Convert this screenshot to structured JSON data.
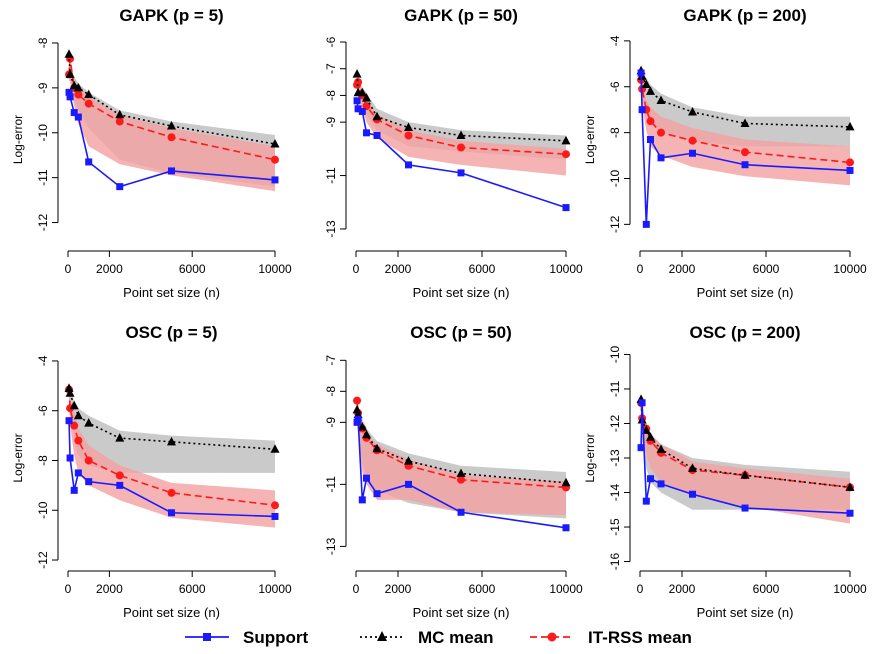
{
  "legend": {
    "items": [
      {
        "label": "Support",
        "color": "#1a1aff",
        "marker": "square",
        "dash": "solid"
      },
      {
        "label": "MC mean",
        "color": "#000000",
        "marker": "triangle",
        "dash": "dotted"
      },
      {
        "label": "IT-RSS mean",
        "color": "#ff1a1a",
        "marker": "circle",
        "dash": "dashed"
      }
    ]
  },
  "colors": {
    "support": "#1a1aff",
    "mc": "#000000",
    "itrss": "#ff1a1a",
    "mc_band": "#bdbdbd",
    "itrss_band": "#f4a0a0"
  },
  "chart_data": [
    {
      "type": "line",
      "title": "GAPK (p = 5)",
      "xlabel": "Point set size (n)",
      "ylabel": "Log-error",
      "xlim": [
        0,
        10000
      ],
      "ylim": [
        -12.5,
        -7.8
      ],
      "xticks": [
        0,
        2000,
        6000,
        10000
      ],
      "yticks": [
        -12,
        -11,
        -10,
        -9,
        -8
      ],
      "series": [
        {
          "name": "Support",
          "x": [
            50,
            100,
            300,
            500,
            1000,
            2500,
            5000,
            10000
          ],
          "y": [
            -9.1,
            -9.2,
            -9.55,
            -9.65,
            -10.65,
            -11.2,
            -10.85,
            -11.05
          ]
        },
        {
          "name": "MC mean",
          "x": [
            50,
            100,
            300,
            500,
            1000,
            2500,
            5000,
            10000
          ],
          "y": [
            -8.25,
            -8.7,
            -8.95,
            -9.0,
            -9.15,
            -9.6,
            -9.85,
            -10.25
          ]
        },
        {
          "name": "IT-RSS mean",
          "x": [
            50,
            100,
            300,
            500,
            1000,
            2500,
            5000,
            10000
          ],
          "y": [
            -8.7,
            -8.35,
            -9.0,
            -9.15,
            -9.35,
            -9.75,
            -10.1,
            -10.6
          ]
        }
      ],
      "bands": [
        {
          "name": "MC mean",
          "lower": [
            -8.4,
            -8.85,
            -9.3,
            -9.5,
            -9.9,
            -10.6,
            -10.9,
            -11.2
          ],
          "upper": [
            -8.2,
            -8.5,
            -8.75,
            -8.9,
            -9.1,
            -9.5,
            -9.75,
            -10.05
          ]
        },
        {
          "name": "IT-RSS mean",
          "lower": [
            -8.85,
            -8.85,
            -9.4,
            -9.8,
            -10.3,
            -10.7,
            -10.95,
            -11.3
          ],
          "upper": [
            -8.5,
            -8.3,
            -8.85,
            -8.95,
            -9.2,
            -9.6,
            -9.9,
            -10.3
          ]
        }
      ]
    },
    {
      "type": "line",
      "title": "GAPK (p = 50)",
      "xlabel": "Point set size (n)",
      "ylabel": "",
      "xlim": [
        0,
        10000
      ],
      "ylim": [
        -13.6,
        -5.7
      ],
      "xticks": [
        0,
        2000,
        6000,
        10000
      ],
      "yticks": [
        -13,
        -11,
        -9,
        -8,
        -7,
        -6
      ],
      "series": [
        {
          "name": "Support",
          "x": [
            50,
            100,
            300,
            500,
            1000,
            2500,
            5000,
            10000
          ],
          "y": [
            -8.2,
            -8.5,
            -8.6,
            -9.4,
            -9.5,
            -10.6,
            -10.9,
            -12.2
          ]
        },
        {
          "name": "MC mean",
          "x": [
            50,
            100,
            300,
            500,
            1000,
            2500,
            5000,
            10000
          ],
          "y": [
            -7.2,
            -7.9,
            -7.9,
            -8.1,
            -8.8,
            -9.2,
            -9.5,
            -9.7
          ]
        },
        {
          "name": "IT-RSS mean",
          "x": [
            50,
            100,
            300,
            500,
            1000,
            2500,
            5000,
            10000
          ],
          "y": [
            -7.6,
            -7.5,
            -8.0,
            -8.4,
            -8.9,
            -9.5,
            -9.95,
            -10.2
          ]
        }
      ],
      "bands": [
        {
          "name": "MC mean",
          "lower": [
            -7.6,
            -8.1,
            -8.4,
            -8.7,
            -9.3,
            -9.9,
            -10.1,
            -10.4
          ],
          "upper": [
            -6.9,
            -7.6,
            -7.7,
            -7.9,
            -8.5,
            -9.0,
            -9.3,
            -9.5
          ]
        },
        {
          "name": "IT-RSS mean",
          "lower": [
            -8.0,
            -7.9,
            -8.5,
            -9.0,
            -9.6,
            -10.3,
            -10.6,
            -11.0
          ],
          "upper": [
            -7.3,
            -7.3,
            -7.8,
            -8.2,
            -8.7,
            -9.3,
            -9.7,
            -10.0
          ]
        }
      ]
    },
    {
      "type": "line",
      "title": "GAPK (p = 200)",
      "xlabel": "Point set size (n)",
      "ylabel": "Log-error",
      "xlim": [
        0,
        10000
      ],
      "ylim": [
        -12.9,
        -3.7
      ],
      "xticks": [
        0,
        2000,
        6000,
        10000
      ],
      "yticks": [
        -12,
        -10,
        -8,
        -6,
        -4
      ],
      "series": [
        {
          "name": "Support",
          "x": [
            50,
            100,
            300,
            500,
            1000,
            2500,
            5000,
            10000
          ],
          "y": [
            -5.4,
            -7.0,
            -12.0,
            -8.3,
            -9.1,
            -8.9,
            -9.4,
            -9.65
          ]
        },
        {
          "name": "MC mean",
          "x": [
            50,
            100,
            300,
            500,
            1000,
            2500,
            5000,
            10000
          ],
          "y": [
            -5.3,
            -5.55,
            -5.9,
            -6.2,
            -6.6,
            -7.1,
            -7.6,
            -7.75
          ]
        },
        {
          "name": "IT-RSS mean",
          "x": [
            50,
            100,
            300,
            500,
            1000,
            2500,
            5000,
            10000
          ],
          "y": [
            -5.7,
            -6.1,
            -7.0,
            -7.5,
            -8.0,
            -8.35,
            -8.85,
            -9.3
          ]
        }
      ],
      "bands": [
        {
          "name": "MC mean",
          "lower": [
            -5.6,
            -6.2,
            -7.2,
            -7.6,
            -8.0,
            -8.4,
            -8.6,
            -8.6
          ],
          "upper": [
            -5.0,
            -5.3,
            -5.6,
            -5.9,
            -6.3,
            -6.9,
            -7.3,
            -7.3
          ]
        },
        {
          "name": "IT-RSS mean",
          "lower": [
            -6.0,
            -6.8,
            -7.9,
            -8.6,
            -9.0,
            -9.5,
            -9.9,
            -10.3
          ],
          "upper": [
            -5.5,
            -5.8,
            -6.6,
            -6.9,
            -7.3,
            -7.8,
            -8.3,
            -8.6
          ]
        }
      ]
    },
    {
      "type": "line",
      "title": "OSC (p = 5)",
      "xlabel": "Point set size (n)",
      "ylabel": "Log-error",
      "xlim": [
        0,
        10000
      ],
      "ylim": [
        -12.2,
        -3.6
      ],
      "xticks": [
        0,
        2000,
        6000,
        10000
      ],
      "yticks": [
        -12,
        -10,
        -8,
        -6,
        -4
      ],
      "series": [
        {
          "name": "Support",
          "x": [
            50,
            100,
            300,
            500,
            1000,
            2500,
            5000,
            10000
          ],
          "y": [
            -6.4,
            -7.9,
            -9.2,
            -8.5,
            -8.85,
            -9.0,
            -10.1,
            -10.25
          ]
        },
        {
          "name": "MC mean",
          "x": [
            50,
            100,
            300,
            500,
            1000,
            2500,
            5000,
            10000
          ],
          "y": [
            -5.1,
            -5.3,
            -5.8,
            -6.2,
            -6.5,
            -7.1,
            -7.25,
            -7.55
          ]
        },
        {
          "name": "IT-RSS mean",
          "x": [
            50,
            100,
            300,
            500,
            1000,
            2500,
            5000,
            10000
          ],
          "y": [
            -5.15,
            -5.9,
            -6.6,
            -7.2,
            -8.0,
            -8.6,
            -9.3,
            -9.8
          ]
        }
      ],
      "bands": [
        {
          "name": "MC mean",
          "lower": [
            -5.5,
            -6.3,
            -7.3,
            -7.8,
            -8.2,
            -8.5,
            -8.5,
            -8.5
          ],
          "upper": [
            -5.0,
            -5.2,
            -5.6,
            -5.9,
            -6.2,
            -6.8,
            -7.0,
            -7.2
          ]
        },
        {
          "name": "IT-RSS mean",
          "lower": [
            -5.6,
            -6.6,
            -7.8,
            -8.5,
            -9.0,
            -9.6,
            -10.3,
            -10.7
          ],
          "upper": [
            -5.0,
            -5.5,
            -6.1,
            -6.7,
            -7.4,
            -8.2,
            -8.9,
            -9.2
          ]
        }
      ]
    },
    {
      "type": "line",
      "title": "OSC (p = 50)",
      "xlabel": "Point set size (n)",
      "ylabel": "",
      "xlim": [
        0,
        10000
      ],
      "ylim": [
        -13.6,
        -6.7
      ],
      "xticks": [
        0,
        2000,
        6000,
        10000
      ],
      "yticks": [
        -13,
        -11,
        -9,
        -8,
        -7
      ],
      "series": [
        {
          "name": "Support",
          "x": [
            50,
            100,
            300,
            500,
            1000,
            2500,
            5000,
            10000
          ],
          "y": [
            -9.0,
            -8.9,
            -11.5,
            -10.8,
            -11.3,
            -11.0,
            -11.9,
            -12.4
          ]
        },
        {
          "name": "MC mean",
          "x": [
            50,
            100,
            300,
            500,
            1000,
            2500,
            5000,
            10000
          ],
          "y": [
            -8.6,
            -8.75,
            -9.15,
            -9.4,
            -9.85,
            -10.25,
            -10.65,
            -10.95
          ]
        },
        {
          "name": "IT-RSS mean",
          "x": [
            50,
            100,
            300,
            500,
            1000,
            2500,
            5000,
            10000
          ],
          "y": [
            -8.3,
            -8.7,
            -9.2,
            -9.5,
            -9.9,
            -10.4,
            -10.85,
            -11.1
          ]
        }
      ],
      "bands": [
        {
          "name": "MC mean",
          "lower": [
            -9.0,
            -9.4,
            -10.3,
            -10.8,
            -11.2,
            -11.6,
            -11.9,
            -12.1
          ],
          "upper": [
            -8.4,
            -8.6,
            -8.9,
            -9.2,
            -9.6,
            -10.0,
            -10.4,
            -10.6
          ]
        },
        {
          "name": "IT-RSS mean",
          "lower": [
            -8.9,
            -9.3,
            -10.6,
            -11.0,
            -11.5,
            -11.5,
            -11.9,
            -12.0
          ],
          "upper": [
            -8.3,
            -8.6,
            -9.0,
            -9.4,
            -9.7,
            -10.2,
            -10.7,
            -10.9
          ]
        }
      ]
    },
    {
      "type": "line",
      "title": "OSC (p = 200)",
      "xlabel": "Point set size (n)",
      "ylabel": "Log-error",
      "xlim": [
        0,
        10000
      ],
      "ylim": [
        -16.1,
        -9.9
      ],
      "xticks": [
        0,
        2000,
        6000,
        10000
      ],
      "yticks": [
        -16,
        -15,
        -14,
        -13,
        -12,
        -11,
        -10
      ],
      "series": [
        {
          "name": "Support",
          "x": [
            50,
            100,
            300,
            500,
            1000,
            2500,
            5000,
            10000
          ],
          "y": [
            -12.7,
            -11.4,
            -14.25,
            -13.6,
            -13.75,
            -14.05,
            -14.45,
            -14.6
          ]
        },
        {
          "name": "MC mean",
          "x": [
            50,
            100,
            300,
            500,
            1000,
            2500,
            5000,
            10000
          ],
          "y": [
            -11.3,
            -11.9,
            -12.2,
            -12.4,
            -12.75,
            -13.3,
            -13.5,
            -13.85
          ]
        },
        {
          "name": "IT-RSS mean",
          "x": [
            50,
            100,
            300,
            500,
            1000,
            2500,
            5000,
            10000
          ],
          "y": [
            -11.4,
            -11.85,
            -12.15,
            -12.5,
            -12.85,
            -13.35,
            -13.5,
            -13.85
          ]
        }
      ],
      "bands": [
        {
          "name": "MC mean",
          "lower": [
            -11.6,
            -12.5,
            -13.3,
            -13.7,
            -14.0,
            -14.5,
            -14.5,
            -14.5
          ],
          "upper": [
            -11.2,
            -11.7,
            -12.0,
            -12.3,
            -12.6,
            -13.0,
            -13.2,
            -13.4
          ]
        },
        {
          "name": "IT-RSS mean",
          "lower": [
            -11.7,
            -12.3,
            -12.9,
            -13.3,
            -13.7,
            -14.1,
            -14.4,
            -14.9
          ],
          "upper": [
            -11.2,
            -11.7,
            -12.0,
            -12.3,
            -12.6,
            -13.1,
            -13.3,
            -13.6
          ]
        }
      ]
    }
  ]
}
